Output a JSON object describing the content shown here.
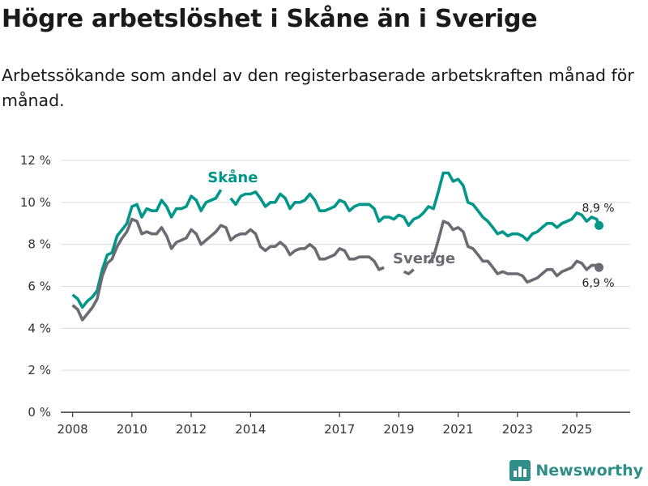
{
  "title": "Högre arbetslöshet i Skåne än i Sverige",
  "subtitle": "Arbetssökande som andel av den registerbaserade arbetskraften månad för månad.",
  "brand": {
    "name": "Newsworthy",
    "color": "#2f8f88"
  },
  "colors": {
    "skane": "#00968a",
    "sverige": "#6b6b73",
    "grid": "#dcdcdc",
    "axis": "#333333"
  },
  "chart_data": {
    "type": "line",
    "title": "Högre arbetslöshet i Skåne än i Sverige",
    "xlabel": "",
    "ylabel": "",
    "xlim": [
      2007.6,
      2026.8
    ],
    "ylim": [
      0,
      12
    ],
    "y_ticks": [
      {
        "value": 0,
        "label": "0 %"
      },
      {
        "value": 2,
        "label": "2 %"
      },
      {
        "value": 4,
        "label": "4 %"
      },
      {
        "value": 6,
        "label": "6 %"
      },
      {
        "value": 8,
        "label": "8 %"
      },
      {
        "value": 10,
        "label": "10 %"
      },
      {
        "value": 12,
        "label": "12 %"
      }
    ],
    "x_ticks": [
      {
        "value": 2008,
        "label": "2008"
      },
      {
        "value": 2010,
        "label": "2010"
      },
      {
        "value": 2012,
        "label": "2012"
      },
      {
        "value": 2014,
        "label": "2014"
      },
      {
        "value": 2017,
        "label": "2017"
      },
      {
        "value": 2019,
        "label": "2019"
      },
      {
        "value": 2021,
        "label": "2021"
      },
      {
        "value": 2023,
        "label": "2023"
      },
      {
        "value": 2025,
        "label": "2025"
      }
    ],
    "series": [
      {
        "name": "Skåne",
        "end_label": "8,9 %",
        "points": [
          [
            2008.0,
            5.6
          ],
          [
            2008.17,
            5.4
          ],
          [
            2008.33,
            5.0
          ],
          [
            2008.5,
            5.3
          ],
          [
            2008.67,
            5.5
          ],
          [
            2008.83,
            5.8
          ],
          [
            2009.0,
            6.8
          ],
          [
            2009.17,
            7.5
          ],
          [
            2009.33,
            7.6
          ],
          [
            2009.5,
            8.4
          ],
          [
            2009.67,
            8.7
          ],
          [
            2009.83,
            9.0
          ],
          [
            2010.0,
            9.8
          ],
          [
            2010.17,
            9.9
          ],
          [
            2010.33,
            9.3
          ],
          [
            2010.5,
            9.7
          ],
          [
            2010.67,
            9.6
          ],
          [
            2010.83,
            9.6
          ],
          [
            2011.0,
            10.1
          ],
          [
            2011.17,
            9.8
          ],
          [
            2011.33,
            9.3
          ],
          [
            2011.5,
            9.7
          ],
          [
            2011.67,
            9.7
          ],
          [
            2011.83,
            9.8
          ],
          [
            2012.0,
            10.3
          ],
          [
            2012.17,
            10.1
          ],
          [
            2012.33,
            9.6
          ],
          [
            2012.5,
            10.0
          ],
          [
            2012.67,
            10.1
          ],
          [
            2012.83,
            10.2
          ],
          [
            2013.0,
            10.6
          ],
          null,
          [
            2013.33,
            10.2
          ],
          [
            2013.5,
            9.9
          ],
          [
            2013.67,
            10.3
          ],
          [
            2013.83,
            10.4
          ],
          [
            2014.0,
            10.4
          ],
          [
            2014.17,
            10.5
          ],
          [
            2014.33,
            10.2
          ],
          [
            2014.5,
            9.8
          ],
          [
            2014.67,
            10.0
          ],
          [
            2014.83,
            10.0
          ],
          [
            2015.0,
            10.4
          ],
          [
            2015.17,
            10.2
          ],
          [
            2015.33,
            9.7
          ],
          [
            2015.5,
            10.0
          ],
          [
            2015.67,
            10.0
          ],
          [
            2015.83,
            10.1
          ],
          [
            2016.0,
            10.4
          ],
          [
            2016.17,
            10.1
          ],
          [
            2016.33,
            9.6
          ],
          [
            2016.5,
            9.6
          ],
          [
            2016.67,
            9.7
          ],
          [
            2016.83,
            9.8
          ],
          [
            2017.0,
            10.1
          ],
          [
            2017.17,
            10.0
          ],
          [
            2017.33,
            9.6
          ],
          [
            2017.5,
            9.8
          ],
          [
            2017.67,
            9.9
          ],
          [
            2017.83,
            9.9
          ],
          [
            2018.0,
            9.9
          ],
          [
            2018.17,
            9.7
          ],
          [
            2018.33,
            9.1
          ],
          [
            2018.5,
            9.3
          ],
          [
            2018.67,
            9.3
          ],
          [
            2018.83,
            9.2
          ],
          [
            2019.0,
            9.4
          ],
          [
            2019.17,
            9.3
          ],
          [
            2019.33,
            8.9
          ],
          [
            2019.5,
            9.2
          ],
          [
            2019.67,
            9.3
          ],
          [
            2019.83,
            9.5
          ],
          [
            2020.0,
            9.8
          ],
          [
            2020.17,
            9.7
          ],
          [
            2020.33,
            10.5
          ],
          [
            2020.5,
            11.4
          ],
          [
            2020.67,
            11.4
          ],
          [
            2020.83,
            11.0
          ],
          [
            2021.0,
            11.1
          ],
          [
            2021.17,
            10.8
          ],
          [
            2021.33,
            10.0
          ],
          [
            2021.5,
            9.9
          ],
          [
            2021.67,
            9.6
          ],
          [
            2021.83,
            9.3
          ],
          [
            2022.0,
            9.1
          ],
          [
            2022.17,
            8.8
          ],
          [
            2022.33,
            8.5
          ],
          [
            2022.5,
            8.6
          ],
          [
            2022.67,
            8.4
          ],
          [
            2022.83,
            8.5
          ],
          [
            2023.0,
            8.5
          ],
          [
            2023.17,
            8.4
          ],
          [
            2023.33,
            8.2
          ],
          [
            2023.5,
            8.5
          ],
          [
            2023.67,
            8.6
          ],
          [
            2023.83,
            8.8
          ],
          [
            2024.0,
            9.0
          ],
          [
            2024.17,
            9.0
          ],
          [
            2024.33,
            8.8
          ],
          [
            2024.5,
            9.0
          ],
          [
            2024.67,
            9.1
          ],
          [
            2024.83,
            9.2
          ],
          [
            2025.0,
            9.5
          ],
          [
            2025.17,
            9.4
          ],
          [
            2025.33,
            9.1
          ],
          [
            2025.5,
            9.3
          ],
          [
            2025.67,
            9.2
          ],
          [
            2025.75,
            8.9
          ]
        ]
      },
      {
        "name": "Sverige",
        "end_label": "6,9 %",
        "points": [
          [
            2008.0,
            5.1
          ],
          [
            2008.17,
            4.9
          ],
          [
            2008.33,
            4.4
          ],
          [
            2008.5,
            4.7
          ],
          [
            2008.67,
            5.0
          ],
          [
            2008.83,
            5.4
          ],
          [
            2009.0,
            6.5
          ],
          [
            2009.17,
            7.1
          ],
          [
            2009.33,
            7.3
          ],
          [
            2009.5,
            7.9
          ],
          [
            2009.67,
            8.3
          ],
          [
            2009.83,
            8.6
          ],
          [
            2010.0,
            9.2
          ],
          [
            2010.17,
            9.1
          ],
          [
            2010.33,
            8.5
          ],
          [
            2010.5,
            8.6
          ],
          [
            2010.67,
            8.5
          ],
          [
            2010.83,
            8.5
          ],
          [
            2011.0,
            8.8
          ],
          [
            2011.17,
            8.4
          ],
          [
            2011.33,
            7.8
          ],
          [
            2011.5,
            8.1
          ],
          [
            2011.67,
            8.2
          ],
          [
            2011.83,
            8.3
          ],
          [
            2012.0,
            8.7
          ],
          [
            2012.17,
            8.5
          ],
          [
            2012.33,
            8.0
          ],
          [
            2012.5,
            8.2
          ],
          [
            2012.67,
            8.4
          ],
          [
            2012.83,
            8.6
          ],
          [
            2013.0,
            8.9
          ],
          [
            2013.17,
            8.8
          ],
          [
            2013.33,
            8.2
          ],
          [
            2013.5,
            8.4
          ],
          [
            2013.67,
            8.5
          ],
          [
            2013.83,
            8.5
          ],
          [
            2014.0,
            8.7
          ],
          [
            2014.17,
            8.5
          ],
          [
            2014.33,
            7.9
          ],
          [
            2014.5,
            7.7
          ],
          [
            2014.67,
            7.9
          ],
          [
            2014.83,
            7.9
          ],
          [
            2015.0,
            8.1
          ],
          [
            2015.17,
            7.9
          ],
          [
            2015.33,
            7.5
          ],
          [
            2015.5,
            7.7
          ],
          [
            2015.67,
            7.8
          ],
          [
            2015.83,
            7.8
          ],
          [
            2016.0,
            8.0
          ],
          [
            2016.17,
            7.8
          ],
          [
            2016.33,
            7.3
          ],
          [
            2016.5,
            7.3
          ],
          [
            2016.67,
            7.4
          ],
          [
            2016.83,
            7.5
          ],
          [
            2017.0,
            7.8
          ],
          [
            2017.17,
            7.7
          ],
          [
            2017.33,
            7.3
          ],
          [
            2017.5,
            7.3
          ],
          [
            2017.67,
            7.4
          ],
          [
            2017.83,
            7.4
          ],
          [
            2018.0,
            7.4
          ],
          [
            2018.17,
            7.2
          ],
          [
            2018.33,
            6.8
          ],
          [
            2018.5,
            6.9
          ],
          null,
          [
            2019.17,
            6.7
          ],
          [
            2019.33,
            6.6
          ],
          [
            2019.5,
            6.8
          ],
          null,
          [
            2020.0,
            7.1
          ],
          [
            2020.17,
            7.4
          ],
          [
            2020.33,
            8.2
          ],
          [
            2020.5,
            9.1
          ],
          [
            2020.67,
            9.0
          ],
          [
            2020.83,
            8.7
          ],
          [
            2021.0,
            8.8
          ],
          [
            2021.17,
            8.6
          ],
          [
            2021.33,
            7.9
          ],
          [
            2021.5,
            7.8
          ],
          [
            2021.67,
            7.5
          ],
          [
            2021.83,
            7.2
          ],
          [
            2022.0,
            7.2
          ],
          [
            2022.17,
            6.9
          ],
          [
            2022.33,
            6.6
          ],
          [
            2022.5,
            6.7
          ],
          [
            2022.67,
            6.6
          ],
          [
            2022.83,
            6.6
          ],
          [
            2023.0,
            6.6
          ],
          [
            2023.17,
            6.5
          ],
          [
            2023.33,
            6.2
          ],
          [
            2023.5,
            6.3
          ],
          [
            2023.67,
            6.4
          ],
          [
            2023.83,
            6.6
          ],
          [
            2024.0,
            6.8
          ],
          [
            2024.17,
            6.8
          ],
          [
            2024.33,
            6.5
          ],
          [
            2024.5,
            6.7
          ],
          [
            2024.67,
            6.8
          ],
          [
            2024.83,
            6.9
          ],
          [
            2025.0,
            7.2
          ],
          [
            2025.17,
            7.1
          ],
          [
            2025.33,
            6.8
          ],
          [
            2025.5,
            7.0
          ],
          [
            2025.67,
            7.0
          ],
          [
            2025.75,
            6.9
          ]
        ]
      }
    ]
  }
}
